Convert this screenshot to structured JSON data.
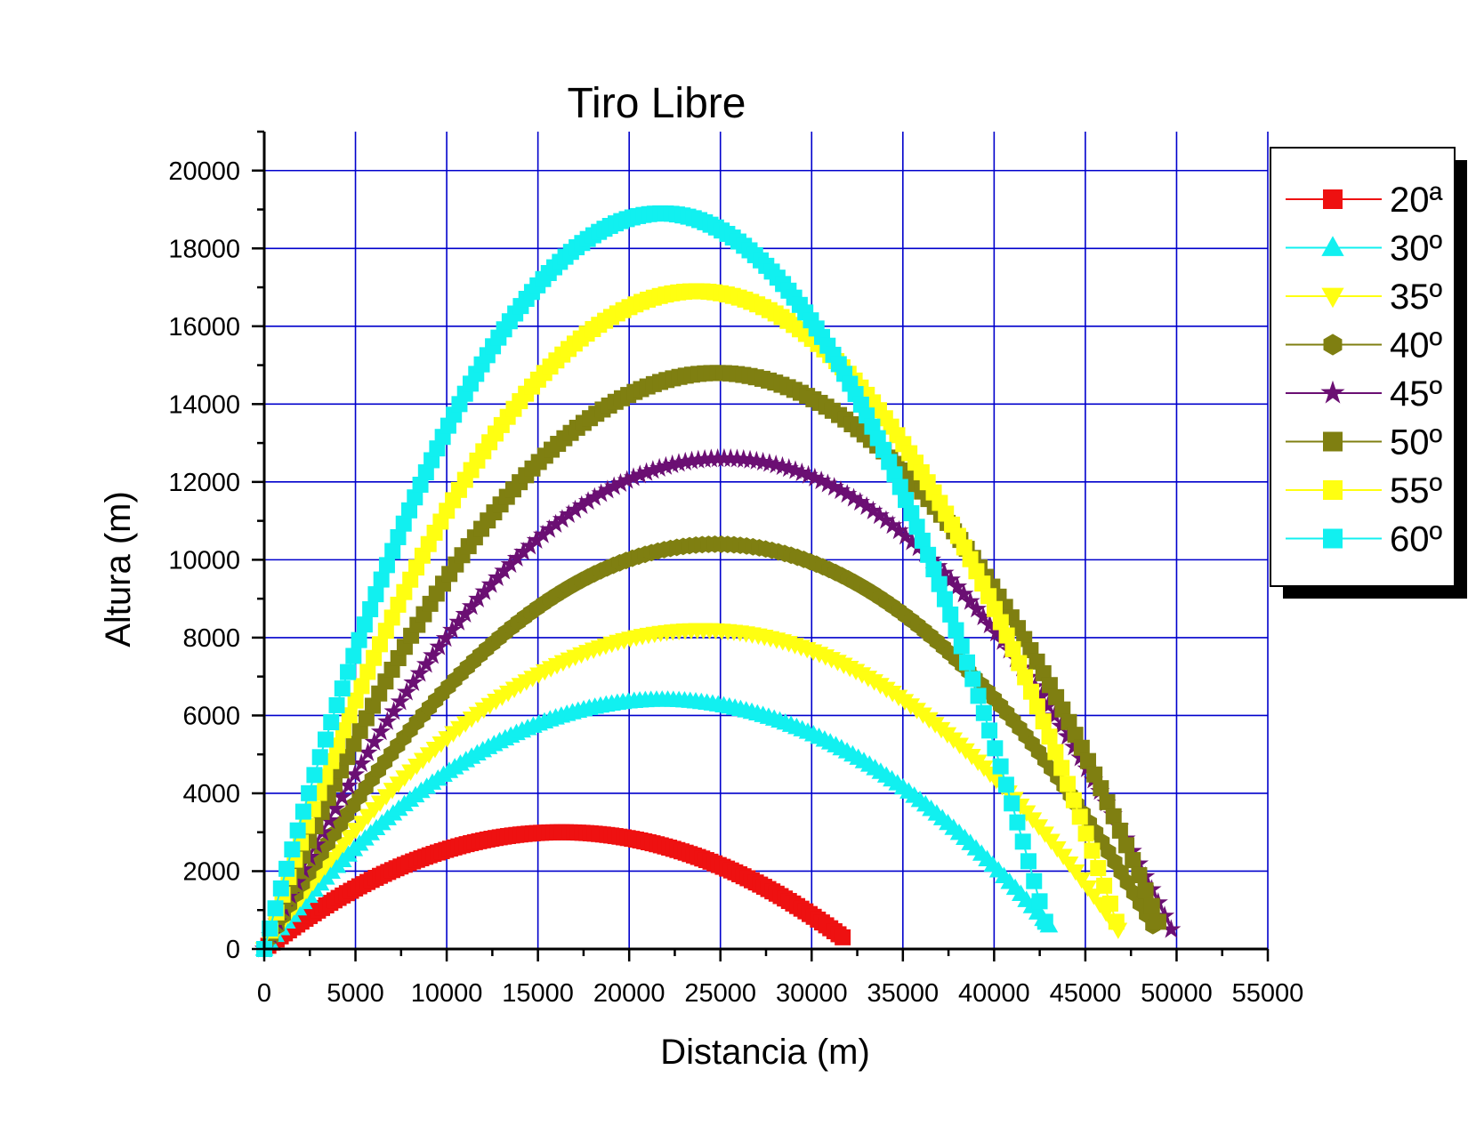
{
  "chart_data": {
    "type": "scatter",
    "title": "Tiro Libre",
    "xlabel": "Distancia (m)",
    "ylabel": "Altura (m)",
    "xlim": [
      0,
      55000
    ],
    "ylim": [
      0,
      21000
    ],
    "xticks": [
      "0",
      "5000",
      "10000",
      "15000",
      "20000",
      "25000",
      "30000",
      "35000",
      "40000",
      "45000",
      "50000",
      "55000"
    ],
    "yticks": [
      "0",
      "2000",
      "4000",
      "6000",
      "8000",
      "10000",
      "12000",
      "14000",
      "16000",
      "18000",
      "20000"
    ],
    "grid": true,
    "grid_color": "#0000cc",
    "legend_position": "top-right",
    "series": [
      {
        "name": "20ª",
        "color": "#ee1111",
        "marker": "square",
        "x_end": 31700,
        "y_end": 300,
        "x_peak": 16300,
        "y_peak": 3000
      },
      {
        "name": "30º",
        "color": "#11f0f0",
        "marker": "triangle-up",
        "x_end": 43000,
        "y_end": 600,
        "x_peak": 21800,
        "y_peak": 6400
      },
      {
        "name": "35º",
        "color": "#ffff11",
        "marker": "triangle-down",
        "x_end": 46800,
        "y_end": 500,
        "x_peak": 24000,
        "y_peak": 8200
      },
      {
        "name": "40º",
        "color": "#7f7f11",
        "marker": "hexagon",
        "x_end": 48700,
        "y_end": 600,
        "x_peak": 24800,
        "y_peak": 10400
      },
      {
        "name": "45º",
        "color": "#6b0f73",
        "marker": "star",
        "x_end": 49700,
        "y_end": 500,
        "x_peak": 25200,
        "y_peak": 12600
      },
      {
        "name": "50º",
        "color": "#7f7f11",
        "marker": "square",
        "x_end": 49000,
        "y_end": 700,
        "x_peak": 24800,
        "y_peak": 14800
      },
      {
        "name": "55º",
        "color": "#ffff11",
        "marker": "square",
        "x_end": 46700,
        "y_end": 700,
        "x_peak": 23700,
        "y_peak": 16900
      },
      {
        "name": "60º",
        "color": "#11f0f0",
        "marker": "square",
        "x_end": 42800,
        "y_end": 700,
        "x_peak": 21800,
        "y_peak": 18900
      }
    ]
  }
}
